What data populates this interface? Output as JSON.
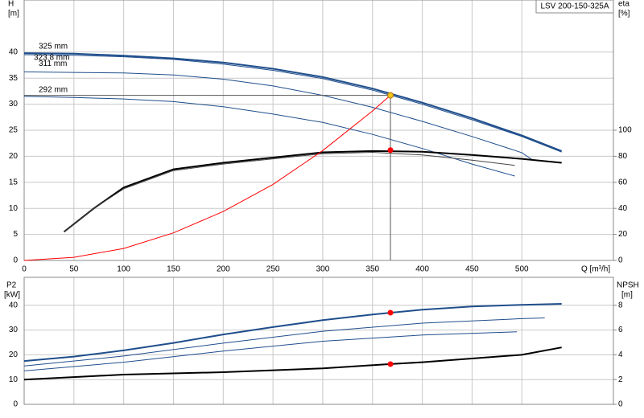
{
  "chart_data": [
    {
      "type": "line",
      "box_label": "LSV 200-150-325A",
      "ylabel": "H",
      "yunit": "[m]",
      "y2label": "eta",
      "y2unit": "[%]",
      "xlabel": "Q [m³/h]",
      "xlim": [
        0,
        592
      ],
      "xticks": [
        0,
        50,
        100,
        150,
        200,
        250,
        300,
        350,
        400,
        450,
        500
      ],
      "ylim": [
        0,
        50
      ],
      "yticks": [
        0,
        5,
        10,
        15,
        20,
        25,
        30,
        35,
        40
      ],
      "y2lim": [
        0,
        200
      ],
      "y2ticks": [
        0,
        20,
        40,
        60,
        80,
        100
      ],
      "grid": true,
      "series": [
        {
          "name": "325 mm",
          "color": "#1f4e8c",
          "x": [
            0,
            50,
            100,
            150,
            200,
            250,
            300,
            350,
            400,
            450,
            500,
            540
          ],
          "values": [
            39.8,
            39.7,
            39.3,
            38.8,
            38,
            36.8,
            35.2,
            33,
            30.3,
            27.3,
            24,
            21
          ]
        },
        {
          "name": "323.8 mm",
          "color": "#1f4e8c",
          "x": [
            0,
            50,
            100,
            150,
            200,
            250,
            300,
            350,
            400,
            450,
            500,
            540
          ],
          "values": [
            39.5,
            39.4,
            39.1,
            38.6,
            37.7,
            36.5,
            34.9,
            32.7,
            30,
            27,
            23.8,
            20.8
          ]
        },
        {
          "name": "311 mm",
          "color": "#1f4e8c",
          "x": [
            0,
            50,
            100,
            150,
            200,
            250,
            300,
            350,
            400,
            450,
            500,
            510
          ],
          "values": [
            36.2,
            36.1,
            36,
            35.6,
            34.8,
            33.5,
            31.7,
            29.4,
            26.7,
            23.8,
            20.7,
            19.4
          ]
        },
        {
          "name": "292 mm",
          "color": "#1f4e8c",
          "x": [
            0,
            50,
            100,
            150,
            200,
            250,
            300,
            350,
            400,
            450,
            493
          ],
          "values": [
            31.5,
            31.3,
            31,
            30.5,
            29.5,
            28.1,
            26.5,
            24.2,
            21.5,
            18.5,
            16.2
          ]
        },
        {
          "color": "#000000",
          "axis": "y2",
          "x": [
            40,
            70,
            100,
            150,
            200,
            250,
            300,
            350,
            400,
            450,
            500,
            540
          ],
          "values": [
            22,
            40,
            56,
            70,
            75,
            79,
            83,
            84,
            83.5,
            81,
            78,
            75
          ]
        },
        {
          "color": "#444444",
          "axis": "y2",
          "x": [
            40,
            70,
            100,
            150,
            200,
            250,
            300,
            350,
            400,
            450,
            493
          ],
          "values": [
            22,
            40,
            55,
            69,
            74,
            78,
            82,
            83,
            81,
            77,
            73
          ]
        },
        {
          "color": "#ff0000",
          "x": [
            0,
            50,
            100,
            150,
            200,
            250,
            300,
            350,
            368
          ],
          "values": [
            0,
            0.6,
            2.3,
            5.3,
            9.4,
            14.6,
            21.1,
            28.7,
            31.7
          ]
        }
      ],
      "points": [
        {
          "x": 368,
          "y": 31.7,
          "color": "#f5c518"
        },
        {
          "x": 368,
          "y": 84.7,
          "color": "#ff0000",
          "axis": "y2"
        }
      ]
    },
    {
      "type": "line",
      "ylabel": "P2",
      "yunit": "[kW]",
      "y2label": "NPSH",
      "y2unit": "[m]",
      "xlim": [
        0,
        592
      ],
      "xticks": [
        0,
        50,
        100,
        150,
        200,
        250,
        300,
        350,
        400,
        450,
        500
      ],
      "ylim": [
        0,
        50
      ],
      "yticks": [
        0,
        10,
        20,
        30,
        40
      ],
      "y2lim": [
        0,
        10
      ],
      "y2ticks": [
        0,
        2,
        4,
        6,
        8
      ],
      "grid": true,
      "series": [
        {
          "color": "#1f4e8c",
          "x": [
            0,
            50,
            100,
            150,
            200,
            250,
            300,
            350,
            400,
            450,
            500,
            540
          ],
          "values": [
            17.5,
            19.3,
            21.8,
            24.8,
            28.2,
            31.2,
            34,
            36.3,
            38.2,
            39.5,
            40.2,
            40.6
          ]
        },
        {
          "color": "#1f4e8c",
          "x": [
            0,
            100,
            200,
            300,
            400,
            500,
            523
          ],
          "values": [
            15.5,
            19.5,
            24.7,
            29.5,
            32.8,
            34.6,
            34.9
          ]
        },
        {
          "color": "#1f4e8c",
          "x": [
            0,
            100,
            200,
            300,
            400,
            495
          ],
          "values": [
            13.5,
            17,
            21.5,
            25.5,
            28,
            29.3
          ]
        },
        {
          "color": "#000000",
          "axis": "y2",
          "x": [
            0,
            100,
            200,
            300,
            368,
            400,
            500,
            540
          ],
          "values": [
            2,
            2.4,
            2.6,
            2.9,
            3.25,
            3.4,
            4,
            4.6
          ]
        }
      ],
      "points": [
        {
          "x": 368,
          "y": 37,
          "color": "#ff0000"
        },
        {
          "x": 368,
          "y": 3.25,
          "color": "#ff0000",
          "axis": "y2"
        }
      ]
    }
  ]
}
